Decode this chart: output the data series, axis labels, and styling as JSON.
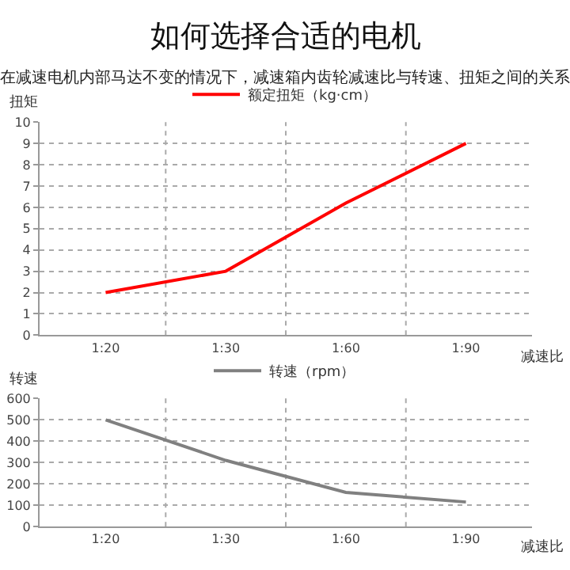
{
  "chart_data": [
    {
      "type": "line",
      "title": "如何选择合适的电机",
      "subtitle": "在减速电机内部马达不变的情况下，减速箱内齿轮减速比与转速、扭矩之间的关系",
      "xlabel": "减速比",
      "ylabel": "扭矩",
      "categories": [
        "1:20",
        "1:30",
        "1:60",
        "1:90"
      ],
      "series": [
        {
          "name": "额定扭矩（kg·cm）",
          "color": "#ff0000",
          "values": [
            2,
            3,
            6.2,
            9
          ]
        }
      ],
      "ylim": [
        0,
        10
      ],
      "yticks": [
        0,
        1,
        2,
        3,
        4,
        5,
        6,
        7,
        8,
        9,
        10
      ],
      "grid": true,
      "legend": "top",
      "marker": "none",
      "line_style": "solid"
    },
    {
      "type": "line",
      "xlabel": "减速比",
      "ylabel": "转速",
      "categories": [
        "1:20",
        "1:30",
        "1:60",
        "1:90"
      ],
      "series": [
        {
          "name": "转速（rpm）",
          "color": "#808080",
          "values": [
            500,
            310,
            160,
            115
          ]
        }
      ],
      "ylim": [
        0,
        600
      ],
      "yticks": [
        0,
        100,
        200,
        300,
        400,
        500,
        600
      ],
      "grid": true,
      "legend": "top",
      "marker": "none",
      "line_style": "solid"
    }
  ]
}
